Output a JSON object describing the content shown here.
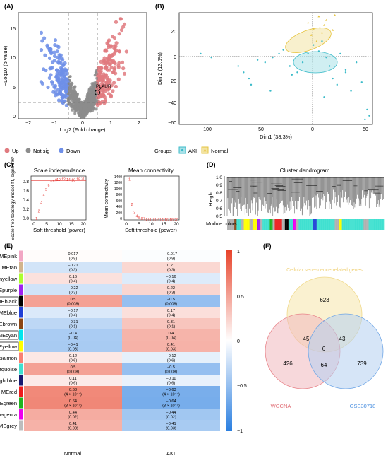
{
  "panels": {
    "A": {
      "label": "(A)"
    },
    "B": {
      "label": "(B)"
    },
    "C": {
      "label": "(C)"
    },
    "D": {
      "label": "(D)"
    },
    "E": {
      "label": "(E)"
    },
    "F": {
      "label": "(F)"
    }
  },
  "volcano": {
    "ylabel": "−Log10 (p value)",
    "xlabel": "Log2 (Fold change)",
    "annotation": "PLAUR",
    "legend": [
      {
        "label": "Up",
        "color": "#e07a7f"
      },
      {
        "label": "Not sig",
        "color": "#8c8c8c"
      },
      {
        "label": "Down",
        "color": "#6f8fe8"
      }
    ],
    "xticks": [
      "−2",
      "−1",
      "0",
      "1",
      "2"
    ],
    "yticks": [
      "0",
      "5",
      "10",
      "15"
    ]
  },
  "pca": {
    "xlabel": "Dim1 (38.3%)",
    "ylabel": "Dim2 (13.5%)",
    "xticks": [
      "−100",
      "−50",
      "0",
      "50"
    ],
    "yticks": [
      "20",
      "0",
      "−20",
      "−40",
      "−60"
    ],
    "legend_title": "Groups",
    "legend": [
      {
        "label": "AKI",
        "color": "#3bbbc9"
      },
      {
        "label": "Normal",
        "color": "#e6c440"
      }
    ]
  },
  "scale_independence": {
    "title": "Scale independence",
    "xlabel": "Soft threshold (power)",
    "ylabel": "Scale free topology model fit, signed R²",
    "xticks": [
      "0",
      "5",
      "10",
      "15",
      "20"
    ],
    "yticks": [
      "0.0",
      "0.2",
      "0.4",
      "0.6",
      "0.8"
    ]
  },
  "mean_connectivity": {
    "title": "Mean connectivity",
    "xlabel": "Soft threshold (power)",
    "ylabel": "Mean connectivity",
    "xticks": [
      "0",
      "5",
      "10",
      "15",
      "20"
    ],
    "yticks": [
      "0",
      "200",
      "400",
      "600",
      "800",
      "1000",
      "1200",
      "1400"
    ]
  },
  "dendrogram": {
    "title": "Cluster dendrogram",
    "ylabel": "Height",
    "module_label": "Module colors",
    "yticks": [
      "1.0",
      "0.9",
      "0.8",
      "0.7",
      "0.6",
      "0.5"
    ]
  },
  "heatmap": {
    "columns": [
      "Normal",
      "AKI"
    ],
    "rows": [
      {
        "name": "MEpink",
        "boxed": false,
        "color": "#f2a7c4",
        "n": "0.017",
        "np": "(0.9)",
        "a": "−0.017",
        "ap": "(0.9)"
      },
      {
        "name": "MEtan",
        "boxed": false,
        "color": "#d2b48c",
        "n": "−0.21",
        "np": "(0.3)",
        "a": "0.21",
        "ap": "(0.3)"
      },
      {
        "name": "MEgreenyellow",
        "boxed": false,
        "color": "#adff2f",
        "n": "0.16",
        "np": "(0.4)",
        "a": "−0.16",
        "ap": "(0.4)"
      },
      {
        "name": "MEpurple",
        "boxed": false,
        "color": "#a020f0",
        "n": "−0.22",
        "np": "(0.3)",
        "a": "0.22",
        "ap": "(0.3)"
      },
      {
        "name": "MEblack",
        "boxed": true,
        "color": "#000000",
        "n": "0.5",
        "np": "(0.008)",
        "a": "−0.5",
        "ap": "(0.008)"
      },
      {
        "name": "MEblue",
        "boxed": false,
        "color": "#1f3fd6",
        "n": "−0.17",
        "np": "(0.4)",
        "a": "0.17",
        "ap": "(0.4)"
      },
      {
        "name": "MEbrown",
        "boxed": false,
        "color": "#8b4513",
        "n": "−0.31",
        "np": "(0.1)",
        "a": "0.31",
        "ap": "(0.1)"
      },
      {
        "name": "MEcyan",
        "boxed": true,
        "color": "#00e5ee",
        "n": "−0.4",
        "np": "(0.04)",
        "a": "0.4",
        "ap": "(0.04)"
      },
      {
        "name": "MEyellow",
        "boxed": true,
        "color": "#ffff00",
        "n": "−0.41",
        "np": "(0.03)",
        "a": "0.41",
        "ap": "(0.03)"
      },
      {
        "name": "MEsalmon",
        "boxed": false,
        "color": "#fa8072",
        "n": "0.12",
        "np": "(0.6)",
        "a": "−0.12",
        "ap": "(0.6)"
      },
      {
        "name": "MEturquoise",
        "boxed": false,
        "color": "#40e0d0",
        "n": "0.5",
        "np": "(0.008)",
        "a": "−0.5",
        "ap": "(0.008)"
      },
      {
        "name": "MEmidnightblue",
        "boxed": false,
        "color": "#191970",
        "n": "0.11",
        "np": "(0.6)",
        "a": "−0.11",
        "ap": "(0.6)"
      },
      {
        "name": "MEred",
        "boxed": false,
        "color": "#ee1c1c",
        "n": "0.63",
        "np": "(4 × 10⁻⁴)",
        "a": "−0.63",
        "ap": "(4 × 10⁻⁴)"
      },
      {
        "name": "MEgreen",
        "boxed": false,
        "color": "#1fb51f",
        "n": "0.64",
        "np": "(3 × 10⁻⁴)",
        "a": "−0.64",
        "ap": "(3 × 10⁻⁴)"
      },
      {
        "name": "MEmagenta",
        "boxed": false,
        "color": "#ee00ee",
        "n": "0.44",
        "np": "(0.02)",
        "a": "−0.44",
        "ap": "(0.02)"
      },
      {
        "name": "MEgrey",
        "boxed": false,
        "color": "#bdbdbd",
        "n": "0.41",
        "np": "(0.03)",
        "a": "−0.41",
        "ap": "(0.03)"
      }
    ],
    "colorbar_ticks": [
      "1",
      "0.5",
      "0",
      "−0.5",
      "−1"
    ]
  },
  "venn": {
    "sets": [
      {
        "label": "Cellular senescence-related genes",
        "color": "#f0d98a"
      },
      {
        "label": "WGCNA",
        "color": "#e8848a"
      },
      {
        "label": "GSE30718",
        "color": "#6fa6e6"
      }
    ],
    "counts": {
      "top_only": "623",
      "left_only": "426",
      "right_only": "739",
      "top_left": "45",
      "top_right": "43",
      "left_right": "64",
      "center": "6"
    }
  },
  "chart_data": [
    {
      "type": "scatter",
      "title": "",
      "xlabel": "Log2 (Fold change)",
      "ylabel": "−Log10 (p value)",
      "xlim": [
        -2.2,
        2.2
      ],
      "ylim": [
        0,
        17
      ],
      "thresholds": {
        "x": [
          -0.5,
          0.5
        ],
        "y": 1.3
      },
      "series": [
        {
          "name": "Up"
        },
        {
          "name": "Not sig"
        },
        {
          "name": "Down"
        }
      ],
      "annotation": {
        "label": "PLAUR",
        "x": 0.55,
        "y": 2.2
      }
    },
    {
      "type": "scatter",
      "xlabel": "Dim1 (38.3%)",
      "ylabel": "Dim2 (13.5%)",
      "xlim": [
        -125,
        55
      ],
      "ylim": [
        -62,
        28
      ],
      "series": [
        {
          "name": "AKI",
          "x": [
            -105,
            -95,
            -70,
            -65,
            -60,
            -58,
            -52,
            -45,
            -38,
            -32,
            -28,
            -22,
            -15,
            -10,
            -5,
            0,
            5,
            8,
            12,
            15,
            18,
            22,
            25,
            30,
            35,
            40,
            45,
            50,
            52,
            -40,
            -20,
            10,
            30,
            48
          ],
          "y": [
            -5,
            -8,
            -15,
            -20,
            -25,
            -30,
            -10,
            -12,
            -8,
            -5,
            -2,
            -15,
            -20,
            -12,
            -5,
            2,
            -3,
            5,
            -8,
            -15,
            -25,
            -30,
            -5,
            -20,
            -35,
            -12,
            -28,
            -50,
            -55,
            -35,
            -22,
            -40,
            -18,
            -58
          ]
        },
        {
          "name": "Normal",
          "x": [
            -5,
            0,
            5,
            8,
            10,
            12,
            15,
            18,
            20,
            -2,
            3,
            6
          ],
          "y": [
            20,
            15,
            25,
            12,
            18,
            22,
            8,
            14,
            26,
            10,
            5,
            16
          ]
        }
      ]
    },
    {
      "type": "scatter",
      "title": "Scale independence",
      "xlabel": "Soft threshold (power)",
      "ylabel": "Scale free topology model fit, signed R²",
      "xlim": [
        0,
        20
      ],
      "ylim": [
        -0.05,
        0.95
      ],
      "hline": 0.85,
      "x": [
        1,
        2,
        3,
        4,
        5,
        6,
        7,
        8,
        9,
        10,
        12,
        14,
        16,
        18,
        20
      ],
      "y": [
        -0.02,
        0.15,
        0.35,
        0.52,
        0.64,
        0.74,
        0.8,
        0.84,
        0.86,
        0.87,
        0.88,
        0.87,
        0.86,
        0.88,
        0.89
      ]
    },
    {
      "type": "scatter",
      "title": "Mean connectivity",
      "xlabel": "Soft threshold (power)",
      "ylabel": "Mean connectivity",
      "xlim": [
        0,
        20
      ],
      "ylim": [
        0,
        1450
      ],
      "x": [
        1,
        2,
        3,
        4,
        5,
        6,
        7,
        8,
        9,
        10,
        12,
        14,
        16,
        18,
        20
      ],
      "y": [
        1350,
        520,
        240,
        130,
        75,
        45,
        30,
        20,
        15,
        12,
        8,
        6,
        5,
        4,
        3
      ]
    }
  ]
}
